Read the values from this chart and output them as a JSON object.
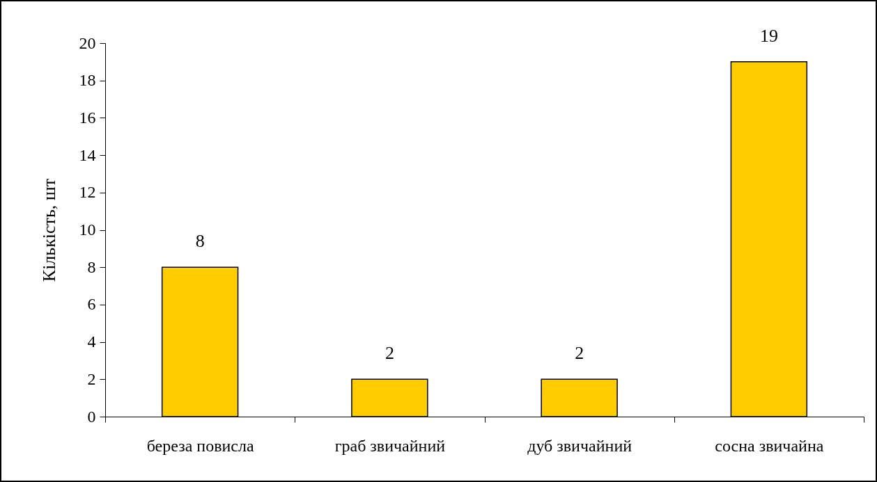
{
  "chart_data": {
    "type": "bar",
    "ylabel": "Кількість, шт",
    "categories": [
      "береза повисла",
      "граб звичайний",
      "дуб звичайний",
      "сосна звичайна"
    ],
    "values": [
      8,
      2,
      2,
      19
    ],
    "color": "#ffcc00",
    "ylim": [
      0,
      20
    ],
    "yticks": [
      0,
      2,
      4,
      6,
      8,
      10,
      12,
      14,
      16,
      18,
      20
    ],
    "grid": false,
    "data_labels": true
  }
}
